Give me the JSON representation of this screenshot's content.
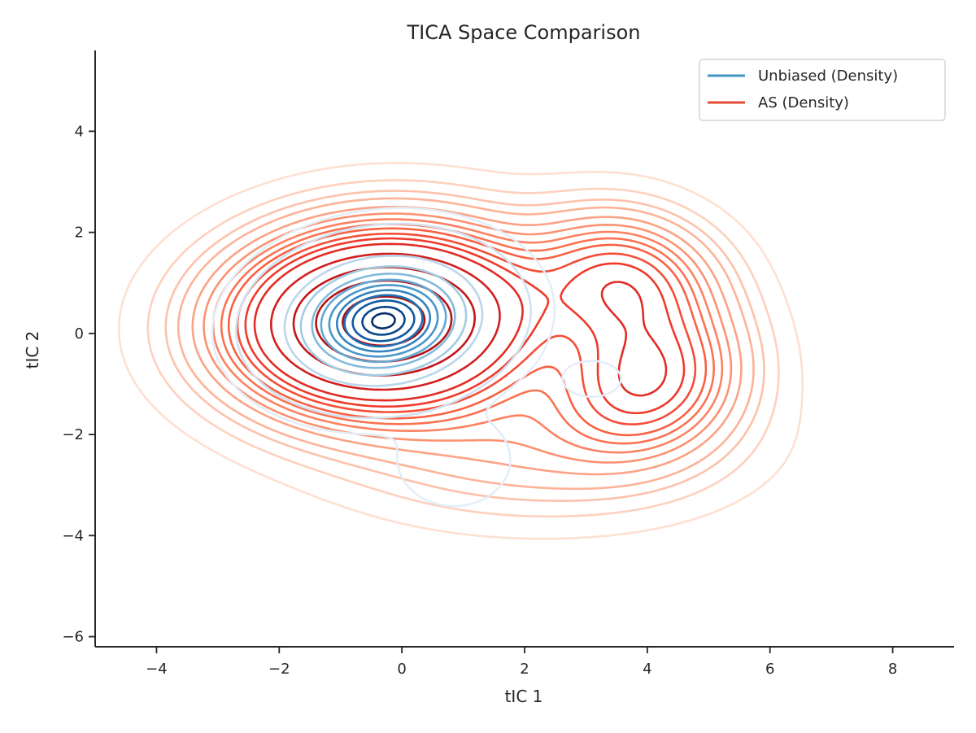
{
  "chart_data": {
    "type": "contour",
    "title": "TICA Space Comparison",
    "xlabel": "tIC 1",
    "ylabel": "tIC 2",
    "xlim": [
      -5,
      9
    ],
    "ylim": [
      -6.2,
      5.6
    ],
    "xticks": [
      -4,
      -2,
      0,
      2,
      4,
      6,
      8
    ],
    "yticks": [
      -6,
      -4,
      -2,
      0,
      2,
      4
    ],
    "xtick_labels": [
      "−4",
      "−2",
      "0",
      "2",
      "4",
      "6",
      "8"
    ],
    "ytick_labels": [
      "−6",
      "−4",
      "−2",
      "0",
      "2",
      "4"
    ],
    "grid": false,
    "legend_position": "top-right",
    "series": [
      {
        "name": "Unbiased (Density)",
        "kind": "density contour",
        "color": "#4393c3",
        "colormap": "Blues",
        "peaks": [
          {
            "x": -0.3,
            "y": 0.25,
            "sx": 0.75,
            "sy": 0.6,
            "rho": 0.1,
            "w": 1.0
          },
          {
            "x": 0.85,
            "y": -2.5,
            "sx": 0.55,
            "sy": 0.55,
            "rho": 0.0,
            "w": 0.004
          },
          {
            "x": 3.1,
            "y": -0.9,
            "sx": 0.4,
            "sy": 0.3,
            "rho": 0.0,
            "w": 0.002
          }
        ],
        "levels": [
          0.001,
          0.006,
          0.1,
          0.2,
          0.3,
          0.4,
          0.5,
          0.6,
          0.7,
          0.8,
          0.9,
          0.97
        ]
      },
      {
        "name": "AS (Density)",
        "kind": "density contour",
        "color": "#e34a33",
        "colormap": "Reds",
        "peaks": [
          {
            "x": -0.3,
            "y": 0.25,
            "sx": 1.45,
            "sy": 1.05,
            "rho": 0.05,
            "w": 1.0
          },
          {
            "x": 3.6,
            "y": 1.0,
            "sx": 0.95,
            "sy": 0.85,
            "rho": -0.1,
            "w": 0.3
          },
          {
            "x": 4.0,
            "y": -0.9,
            "sx": 0.95,
            "sy": 0.9,
            "rho": 0.1,
            "w": 0.32
          },
          {
            "x": 2.2,
            "y": -2.2,
            "sx": 1.9,
            "sy": 0.9,
            "rho": 0.0,
            "w": 0.1
          }
        ],
        "levels": [
          0.012,
          0.03,
          0.05,
          0.07,
          0.1,
          0.13,
          0.16,
          0.19,
          0.22,
          0.26,
          0.3,
          0.35,
          0.45,
          0.6,
          0.75,
          0.9
        ]
      }
    ]
  }
}
